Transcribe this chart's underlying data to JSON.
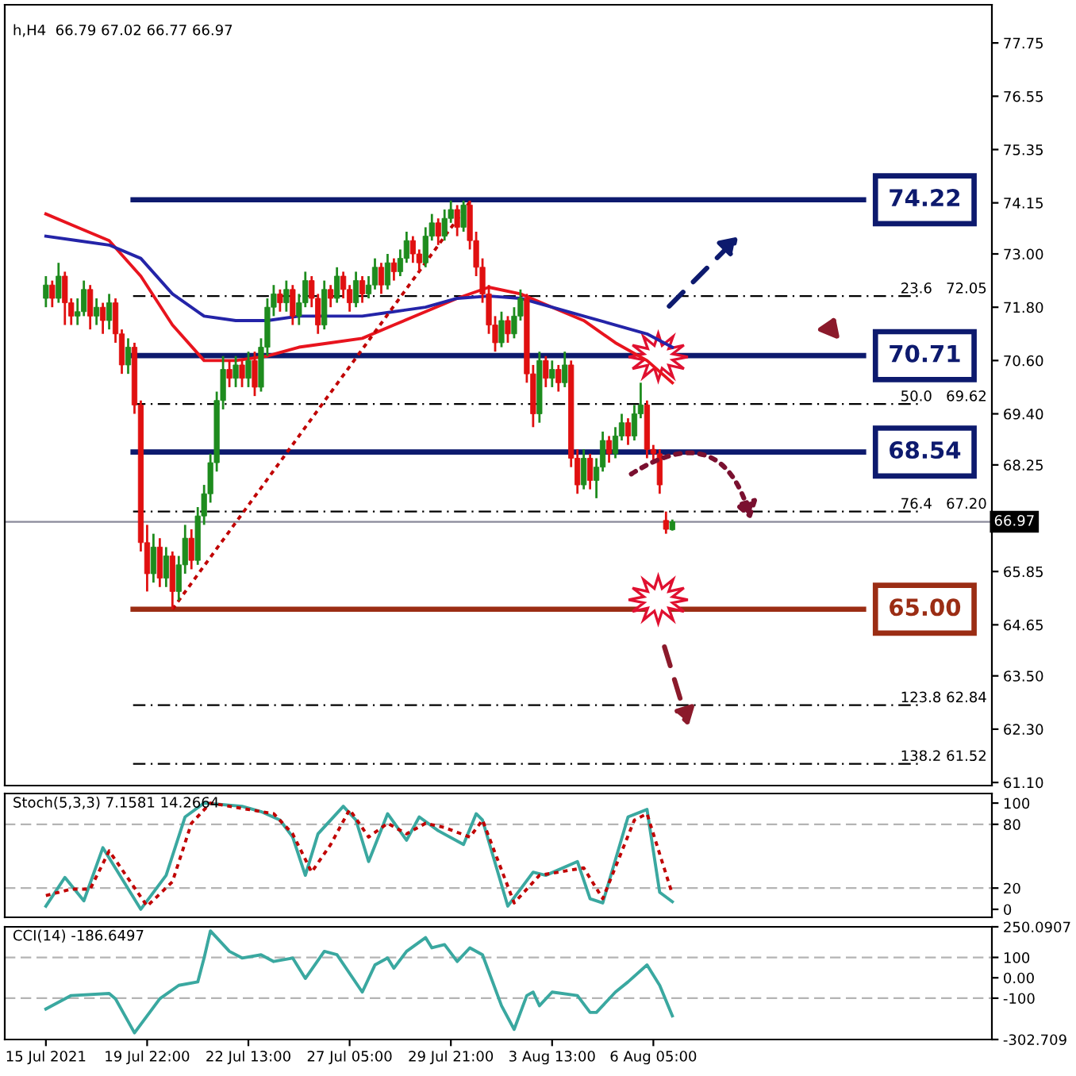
{
  "chart_data": [
    {
      "type": "candlestick",
      "title": "h,H4  66.79 67.02 66.77 66.97",
      "tick_labels": "y",
      "categories": [
        null,
        null,
        null,
        null,
        null,
        null,
        null,
        null,
        null,
        null,
        null,
        null,
        null,
        null,
        null,
        null,
        null,
        null,
        null,
        null,
        null,
        null,
        null,
        null,
        null,
        null,
        null,
        null,
        null,
        null,
        null,
        null,
        null,
        null,
        null,
        null,
        null,
        null,
        null,
        null,
        null,
        null,
        null,
        null,
        null,
        null,
        null,
        null,
        null,
        null,
        null,
        null,
        null,
        null,
        null,
        null,
        null,
        null,
        null,
        null,
        null,
        null,
        null,
        null,
        null,
        null,
        null,
        null,
        null,
        null,
        null,
        null,
        null,
        null,
        null,
        null,
        null,
        null,
        null,
        null,
        null,
        null,
        null,
        null,
        null,
        null,
        null,
        null,
        null,
        null,
        null,
        null,
        null,
        null,
        null,
        null,
        null,
        null,
        null,
        null,
        null,
        null,
        null,
        null,
        null,
        null,
        null,
        null,
        null,
        null,
        null,
        null,
        null,
        null,
        null,
        null,
        null,
        null,
        null,
        null,
        null,
        null,
        null,
        null,
        null,
        null,
        null,
        null,
        null,
        null,
        null,
        null,
        null,
        null,
        null,
        null,
        null,
        null,
        null,
        null,
        null,
        null,
        null,
        null,
        null,
        null,
        null,
        null,
        null,
        null,
        null,
        null,
        null,
        null,
        null,
        null
      ],
      "colors": [
        null,
        null,
        null,
        null,
        null,
        null,
        "#1e8c1e",
        "#e01010",
        "#1e8c1e",
        "#e01010",
        "#e01010",
        "#1e8c1e",
        "#1e8c1e",
        "#e01010",
        "#1e8c1e",
        "#e01010",
        "#1e8c1e",
        "#e01010",
        "#e01010",
        "#1e8c1e",
        "#e01010",
        "#e01010",
        "#e01010",
        "#1e8c1e",
        "#e01010",
        "#1e8c1e",
        "#e01010",
        "#1e8c1e",
        "#1e8c1e",
        "#e01010",
        "#1e8c1e",
        "#1e8c1e",
        "#1e8c1e",
        "#1e8c1e",
        "#1e8c1e",
        "#e01010",
        "#1e8c1e",
        "#e01010",
        "#1e8c1e",
        "#e01010",
        "#1e8c1e",
        "#1e8c1e",
        "#1e8c1e",
        "#e01010",
        "#1e8c1e",
        "#e01010",
        "#1e8c1e",
        "#1e8c1e",
        "#e01010",
        "#e01010",
        "#1e8c1e",
        "#e01010",
        "#1e8c1e",
        "#e01010",
        "#e01010",
        "#1e8c1e",
        "#e01010",
        "#1e8c1e",
        "#1e8c1e",
        "#e01010",
        "#1e8c1e",
        "#e01010",
        "#1e8c1e",
        "#1e8c1e",
        "#e01010",
        "#e01010",
        "#1e8c1e",
        "#1e8c1e",
        "#e01010",
        "#1e8c1e",
        "#1e8c1e",
        "#e01010",
        "#1e8c1e",
        "#e01010",
        "#e01010",
        "#e01010",
        "#e01010",
        "#e01010",
        "#1e8c1e",
        "#e01010",
        "#1e8c1e",
        "#1e8c1e",
        "#e01010",
        "#e01010",
        "#1e8c1e",
        "#e01010",
        "#1e8c1e",
        "#e01010",
        "#1e8c1e",
        "#e01010",
        "#e01010",
        "#1e8c1e",
        "#e01010",
        "#1e8c1e",
        "#1e8c1e",
        "#e01010",
        "#1e8c1e",
        "#1e8c1e",
        "#e01010",
        "#1e8c1e",
        "#1e8c1e",
        "#e01010",
        "#e01010",
        "#e01010",
        "#e01010",
        "#1e8c1e",
        null,
        null,
        null,
        null,
        null,
        null,
        null,
        null,
        null,
        null,
        null,
        null,
        null,
        null,
        null,
        null,
        null,
        null,
        null,
        null,
        null,
        null,
        null,
        null,
        null,
        null,
        null,
        null,
        null,
        null,
        null,
        null,
        null,
        null,
        null,
        null,
        null,
        null,
        null,
        null,
        null,
        null,
        null,
        null,
        null,
        null,
        null,
        null,
        null,
        null
      ],
      "ohlc": [
        null,
        null,
        null,
        null,
        null,
        null,
        [
          72.0,
          72.5,
          71.8,
          72.3
        ],
        [
          72.3,
          72.4,
          71.8,
          72.0
        ],
        [
          72.0,
          72.8,
          71.9,
          72.5
        ],
        [
          72.5,
          72.6,
          71.4,
          71.9
        ],
        [
          71.9,
          72.0,
          71.4,
          71.6
        ],
        [
          71.6,
          72.0,
          71.4,
          71.7
        ],
        [
          71.7,
          72.4,
          71.6,
          72.2
        ],
        [
          72.2,
          72.3,
          71.3,
          71.6
        ],
        [
          71.6,
          72.0,
          71.4,
          71.8
        ],
        [
          71.8,
          71.9,
          71.2,
          71.5
        ],
        [
          71.5,
          72.1,
          71.3,
          71.9
        ],
        [
          71.9,
          72.0,
          71.0,
          71.2
        ],
        [
          71.2,
          71.3,
          70.3,
          70.5
        ],
        [
          70.5,
          71.1,
          70.3,
          70.9
        ],
        [
          70.9,
          71.0,
          69.4,
          69.6
        ],
        [
          69.6,
          69.7,
          66.3,
          66.5
        ],
        [
          66.5,
          66.9,
          65.4,
          65.8
        ],
        [
          65.8,
          66.7,
          65.6,
          66.4
        ],
        [
          66.4,
          66.6,
          65.5,
          65.7
        ],
        [
          65.7,
          66.4,
          65.5,
          66.2
        ],
        [
          66.2,
          66.3,
          65.0,
          65.4
        ],
        [
          65.4,
          66.2,
          65.2,
          66.0
        ],
        [
          66.0,
          66.9,
          65.8,
          66.6
        ],
        [
          66.6,
          66.8,
          65.9,
          66.1
        ],
        [
          66.1,
          67.3,
          66.0,
          67.1
        ],
        [
          67.1,
          67.8,
          66.9,
          67.6
        ],
        [
          67.6,
          68.5,
          67.4,
          68.3
        ],
        [
          68.3,
          69.9,
          68.1,
          69.7
        ],
        [
          69.7,
          70.7,
          69.5,
          70.4
        ],
        [
          70.4,
          70.6,
          70.0,
          70.2
        ],
        [
          70.2,
          70.7,
          70.0,
          70.5
        ],
        [
          70.5,
          70.6,
          70.0,
          70.2
        ],
        [
          70.2,
          70.8,
          70.0,
          70.6
        ],
        [
          70.6,
          70.8,
          69.8,
          70.0
        ],
        [
          70.0,
          71.1,
          69.9,
          70.9
        ],
        [
          70.9,
          72.0,
          70.7,
          71.8
        ],
        [
          71.8,
          72.3,
          71.6,
          72.1
        ],
        [
          72.1,
          72.2,
          71.7,
          71.9
        ],
        [
          71.9,
          72.4,
          71.7,
          72.2
        ],
        [
          72.2,
          72.3,
          71.4,
          71.6
        ],
        [
          71.6,
          72.1,
          71.4,
          71.9
        ],
        [
          71.9,
          72.6,
          71.8,
          72.4
        ],
        [
          72.4,
          72.5,
          71.8,
          72.0
        ],
        [
          72.0,
          72.1,
          71.2,
          71.4
        ],
        [
          71.4,
          72.4,
          71.3,
          72.2
        ],
        [
          72.2,
          72.3,
          71.8,
          72.0
        ],
        [
          72.0,
          72.7,
          71.9,
          72.5
        ],
        [
          72.5,
          72.6,
          72.0,
          72.2
        ],
        [
          72.2,
          72.3,
          71.7,
          71.9
        ],
        [
          71.9,
          72.6,
          71.8,
          72.4
        ],
        [
          72.4,
          72.5,
          71.9,
          72.1
        ],
        [
          72.1,
          72.5,
          72.0,
          72.3
        ],
        [
          72.3,
          72.9,
          72.2,
          72.7
        ],
        [
          72.7,
          72.8,
          72.1,
          72.3
        ],
        [
          72.3,
          73.0,
          72.2,
          72.8
        ],
        [
          72.8,
          72.9,
          72.4,
          72.6
        ],
        [
          72.6,
          73.1,
          72.5,
          72.9
        ],
        [
          72.9,
          73.5,
          72.8,
          73.3
        ],
        [
          73.3,
          73.4,
          72.8,
          73.0
        ],
        [
          73.0,
          73.1,
          72.6,
          72.8
        ],
        [
          72.8,
          73.6,
          72.7,
          73.4
        ],
        [
          73.4,
          73.9,
          73.3,
          73.7
        ],
        [
          73.7,
          73.8,
          73.2,
          73.4
        ],
        [
          73.4,
          74.0,
          73.3,
          73.8
        ],
        [
          73.8,
          74.2,
          73.7,
          74.0
        ],
        [
          74.0,
          74.1,
          73.4,
          73.6
        ],
        [
          73.6,
          74.2,
          73.5,
          74.1
        ],
        [
          74.1,
          74.2,
          73.1,
          73.3
        ],
        [
          73.3,
          73.5,
          72.5,
          72.7
        ],
        [
          72.7,
          72.9,
          71.9,
          72.1
        ],
        [
          72.1,
          72.3,
          71.2,
          71.4
        ],
        [
          71.4,
          71.6,
          70.8,
          71.0
        ],
        [
          71.0,
          71.7,
          70.9,
          71.5
        ],
        [
          71.5,
          71.6,
          71.0,
          71.2
        ],
        [
          71.2,
          71.8,
          71.1,
          71.6
        ],
        [
          71.6,
          72.2,
          71.5,
          72.0
        ],
        [
          72.0,
          72.1,
          70.1,
          70.3
        ],
        [
          70.3,
          70.5,
          69.1,
          69.4
        ],
        [
          69.4,
          70.8,
          69.2,
          70.6
        ],
        [
          70.6,
          70.7,
          70.0,
          70.2
        ],
        [
          70.2,
          70.6,
          70.0,
          70.4
        ],
        [
          70.4,
          70.5,
          69.9,
          70.1
        ],
        [
          70.1,
          70.8,
          70.0,
          70.5
        ],
        [
          70.5,
          70.6,
          68.2,
          68.4
        ],
        [
          68.4,
          68.6,
          67.6,
          67.8
        ],
        [
          67.8,
          68.6,
          67.7,
          68.4
        ],
        [
          68.4,
          68.5,
          67.7,
          67.9
        ],
        [
          67.9,
          68.4,
          67.5,
          68.2
        ],
        [
          68.2,
          69.0,
          68.1,
          68.8
        ],
        [
          68.8,
          68.9,
          68.3,
          68.5
        ],
        [
          68.5,
          69.1,
          68.4,
          68.9
        ],
        [
          68.9,
          69.4,
          68.8,
          69.2
        ],
        [
          69.2,
          69.3,
          68.7,
          68.9
        ],
        [
          68.9,
          69.6,
          68.8,
          69.4
        ],
        [
          69.4,
          70.1,
          69.3,
          69.6
        ],
        [
          69.6,
          69.7,
          68.4,
          68.6
        ],
        [
          68.6,
          68.7,
          68.3,
          68.5
        ],
        [
          68.5,
          68.6,
          67.6,
          67.8
        ],
        [
          67.0,
          67.2,
          66.7,
          66.8
        ],
        [
          66.79,
          67.02,
          66.77,
          66.97
        ],
        null,
        null,
        null,
        null,
        null,
        null,
        null,
        null,
        null,
        null,
        null,
        null,
        null,
        null,
        null,
        null,
        null,
        null,
        null,
        null,
        null,
        null,
        null,
        null,
        null,
        null,
        null,
        null,
        null,
        null,
        null,
        null,
        null,
        null,
        null,
        null,
        null,
        null,
        null,
        null,
        null,
        null,
        null,
        null,
        null,
        null,
        null,
        null,
        null,
        null
      ],
      "series": [
        {
          "type": "line",
          "color": "#e8141e",
          "line_style": "solid",
          "values": [
            null,
            null,
            null,
            null,
            null,
            null,
            73.9,
            null,
            null,
            null,
            null,
            73.6,
            null,
            null,
            null,
            null,
            73.3,
            null,
            null,
            null,
            null,
            72.5,
            null,
            null,
            null,
            null,
            71.4,
            null,
            null,
            null,
            null,
            70.6,
            null,
            null,
            null,
            null,
            70.6,
            null,
            null,
            null,
            null,
            70.7,
            null,
            null,
            null,
            null,
            70.9,
            null,
            null,
            null,
            null,
            71.0,
            null,
            null,
            null,
            null,
            71.1,
            null,
            null,
            null,
            null,
            71.4,
            null,
            null,
            null,
            null,
            71.7,
            null,
            null,
            null,
            null,
            72.0,
            null,
            null,
            null,
            null,
            72.25,
            null,
            null,
            null,
            null,
            72.1,
            null,
            null,
            null,
            null,
            71.8,
            null,
            null,
            null,
            null,
            71.5,
            null,
            null,
            null,
            null,
            71.0,
            null,
            null,
            null,
            null,
            70.6,
            null,
            null,
            null,
            70.1,
            null,
            null,
            null,
            null,
            null,
            null,
            null,
            null,
            null,
            null,
            null,
            null,
            null,
            null,
            null,
            null,
            null,
            null,
            null,
            null,
            null,
            null,
            null,
            null,
            null,
            null,
            null,
            null,
            null,
            null,
            null,
            null,
            null,
            null,
            null,
            null,
            null,
            null,
            null,
            null,
            null,
            null,
            null,
            null,
            null,
            null,
            null,
            null,
            null,
            null
          ]
        },
        {
          "type": "line",
          "color": "#2424a8",
          "line_style": "solid",
          "values": [
            null,
            null,
            null,
            null,
            null,
            null,
            73.4,
            null,
            null,
            null,
            null,
            73.3,
            null,
            null,
            null,
            null,
            73.2,
            null,
            null,
            null,
            null,
            72.9,
            null,
            null,
            null,
            null,
            72.1,
            null,
            null,
            null,
            null,
            71.6,
            null,
            null,
            null,
            null,
            71.5,
            null,
            null,
            null,
            null,
            71.5,
            null,
            null,
            null,
            null,
            71.6,
            null,
            null,
            null,
            null,
            71.6,
            null,
            null,
            null,
            null,
            71.6,
            null,
            null,
            null,
            null,
            71.7,
            null,
            null,
            null,
            null,
            71.8,
            null,
            null,
            null,
            null,
            72.0,
            null,
            null,
            null,
            null,
            72.05,
            null,
            null,
            null,
            null,
            72.0,
            null,
            null,
            null,
            null,
            71.8,
            null,
            null,
            null,
            null,
            71.6,
            null,
            null,
            null,
            null,
            71.4,
            null,
            null,
            null,
            null,
            71.2,
            null,
            null,
            null,
            70.9,
            null,
            null,
            null,
            null,
            null,
            null,
            null,
            null,
            null,
            null,
            null,
            null,
            null,
            null,
            null,
            null,
            null,
            null,
            null,
            null,
            null,
            null,
            null,
            null,
            null,
            null,
            null,
            null,
            null,
            null,
            null,
            null,
            null,
            null,
            null,
            null,
            null,
            null,
            null,
            null,
            null,
            null,
            null,
            null,
            null,
            null,
            null,
            null,
            null,
            null
          ]
        },
        {
          "type": "line",
          "color": "#c00000",
          "line_style": "dotted",
          "values": [
            null,
            null,
            null,
            null,
            null,
            null,
            null,
            null,
            null,
            null,
            null,
            null,
            null,
            null,
            null,
            null,
            null,
            null,
            null,
            null,
            null,
            null,
            null,
            null,
            null,
            null,
            65.0,
            null,
            null,
            null,
            null,
            null,
            null,
            null,
            null,
            null,
            null,
            null,
            null,
            null,
            null,
            null,
            null,
            null,
            null,
            null,
            null,
            null,
            null,
            null,
            null,
            null,
            null,
            null,
            null,
            null,
            null,
            null,
            null,
            null,
            null,
            null,
            null,
            null,
            null,
            null,
            null,
            null,
            null,
            null,
            null,
            null,
            null,
            74.17,
            null,
            null,
            null,
            null,
            null,
            null,
            null,
            null,
            null,
            null,
            null,
            null,
            null,
            null,
            null,
            null,
            null,
            null,
            null,
            null,
            null,
            null,
            null,
            null,
            null,
            null,
            null,
            null,
            null,
            null,
            null,
            null,
            null,
            null,
            null,
            null,
            null,
            null,
            null,
            null,
            null,
            null,
            null,
            null,
            null,
            null,
            null,
            null,
            null,
            null,
            null,
            null,
            null,
            null,
            null,
            null,
            null,
            null,
            null,
            null,
            null,
            null,
            null,
            null,
            null,
            null,
            null,
            null,
            null,
            null,
            null,
            null,
            null,
            null,
            null,
            null,
            null,
            null,
            null,
            null,
            null,
            null
          ]
        }
      ],
      "ylim": [
        61.03,
        78.61
      ],
      "yticks": [
        77.75,
        76.55,
        75.35,
        74.15,
        {
          "value": 73.0,
          "label": "73.00"
        },
        {
          "value": 71.8,
          "label": "71.80"
        },
        {
          "value": 70.6,
          "label": "70.60"
        },
        {
          "value": 69.4,
          "label": "69.40"
        },
        68.25,
        65.85,
        64.65,
        {
          "value": 63.5,
          "label": "63.50"
        },
        {
          "value": 62.3,
          "label": "62.30"
        },
        {
          "value": 61.1,
          "label": "61.10"
        }
      ],
      "ref_lines": [
        {
          "axis": "y",
          "value": 74.22,
          "label": "74.22",
          "color": "#0d1a6e",
          "line_style": "solid"
        },
        {
          "axis": "y",
          "value": 70.71,
          "label": "70.71",
          "color": "#0d1a6e",
          "line_style": "solid"
        },
        {
          "axis": "y",
          "value": 68.54,
          "label": "68.54",
          "color": "#0d1a6e",
          "line_style": "solid"
        },
        {
          "axis": "y",
          "value": 65.0,
          "label": "65.00",
          "color": "#9b2d14",
          "line_style": "solid"
        },
        {
          "axis": "y",
          "value": 72.05,
          "label": "23.6   72.05",
          "color": "#000000",
          "line_style": "dashed"
        },
        {
          "axis": "y",
          "value": 69.62,
          "label": "50.0   69.62",
          "color": "#000000",
          "line_style": "dashed"
        },
        {
          "axis": "y",
          "value": 67.2,
          "label": "76.4   67.20",
          "color": "#000000",
          "line_style": "dashed"
        },
        {
          "axis": "y",
          "value": 62.84,
          "label": "123.8 62.84",
          "color": "#000000",
          "line_style": "dashed"
        },
        {
          "axis": "y",
          "value": 61.52,
          "label": "138.2 61.52",
          "color": "#000000",
          "line_style": "dashed"
        },
        {
          "axis": "y",
          "value": 66.97,
          "color": "#8a8a9a",
          "line_style": "solid"
        }
      ],
      "annotations": [
        {
          "text": "66.97",
          "y": 66.97
        }
      ]
    },
    {
      "type": "line",
      "title": "Stoch(5,3,3) 7.1581 14.2664",
      "tick_labels": "y",
      "categories": [
        null,
        null,
        null,
        null,
        null,
        null,
        null,
        null,
        null,
        null,
        null,
        null,
        null,
        null,
        null,
        null,
        null,
        null,
        null,
        null,
        null,
        null,
        null,
        null,
        null,
        null,
        null,
        null,
        null,
        null,
        null,
        null,
        null,
        null,
        null,
        null,
        null,
        null,
        null,
        null,
        null,
        null,
        null,
        null,
        null,
        null,
        null,
        null,
        null,
        null,
        null,
        null,
        null,
        null,
        null,
        null,
        null,
        null,
        null,
        null,
        null,
        null,
        null,
        null,
        null,
        null,
        null,
        null,
        null,
        null,
        null,
        null,
        null,
        null,
        null,
        null,
        null,
        null,
        null,
        null,
        null,
        null,
        null,
        null,
        null,
        null,
        null,
        null,
        null,
        null,
        null,
        null,
        null,
        null,
        null,
        null,
        null,
        null,
        null,
        null,
        null,
        null,
        null,
        null,
        null,
        null,
        null,
        null,
        null,
        null,
        null,
        null,
        null,
        null,
        null,
        null,
        null,
        null,
        null,
        null,
        null,
        null,
        null,
        null,
        null,
        null,
        null,
        null,
        null,
        null,
        null,
        null,
        null,
        null,
        null,
        null,
        null,
        null,
        null,
        null,
        null,
        null,
        null,
        null,
        null,
        null,
        null,
        null,
        null,
        null,
        null,
        null,
        null,
        null,
        null,
        null
      ],
      "series": [
        {
          "color": "#3aa8a0",
          "line_style": "solid",
          "values": [
            null,
            null,
            null,
            null,
            null,
            null,
            3,
            null,
            null,
            30,
            null,
            null,
            8,
            null,
            null,
            58,
            null,
            null,
            null,
            null,
            null,
            0,
            null,
            null,
            null,
            32,
            null,
            null,
            87,
            null,
            null,
            100,
            null,
            null,
            null,
            null,
            null,
            97,
            null,
            null,
            92,
            null,
            null,
            84,
            null,
            68,
            null,
            32,
            null,
            71,
            null,
            null,
            null,
            97,
            null,
            84,
            null,
            45,
            null,
            null,
            90,
            null,
            null,
            65,
            null,
            87,
            null,
            null,
            74,
            null,
            null,
            null,
            61,
            null,
            90,
            84,
            null,
            null,
            null,
            3,
            null,
            null,
            null,
            35,
            null,
            32,
            null,
            null,
            null,
            null,
            45,
            null,
            10,
            null,
            6,
            null,
            null,
            null,
            87,
            null,
            null,
            94,
            null,
            16,
            null,
            7.1581,
            null,
            null,
            null,
            null,
            null,
            null,
            null,
            null,
            null,
            null,
            null,
            null,
            null,
            null,
            null,
            null,
            null,
            null,
            null,
            null,
            null,
            null,
            null,
            null,
            null,
            null,
            null,
            null,
            null,
            null,
            null,
            null,
            null,
            null,
            null,
            null,
            null,
            null,
            null,
            null,
            null,
            null,
            null,
            null,
            null,
            null,
            null,
            null,
            null,
            null
          ]
        },
        {
          "color": "#c00000",
          "line_style": "dotted",
          "values": [
            null,
            null,
            null,
            null,
            null,
            null,
            13,
            null,
            null,
            null,
            19,
            null,
            null,
            19,
            null,
            null,
            55,
            null,
            null,
            null,
            null,
            null,
            3,
            null,
            null,
            null,
            26,
            null,
            null,
            81,
            null,
            null,
            100,
            null,
            null,
            null,
            null,
            null,
            94,
            null,
            null,
            null,
            90,
            null,
            null,
            71,
            null,
            null,
            35,
            null,
            null,
            61,
            null,
            null,
            94,
            null,
            null,
            68,
            null,
            null,
            81,
            null,
            null,
            71,
            null,
            null,
            81,
            null,
            null,
            77,
            null,
            null,
            null,
            68,
            null,
            84,
            null,
            null,
            null,
            null,
            6,
            null,
            null,
            null,
            32,
            null,
            null,
            35,
            null,
            null,
            null,
            39,
            null,
            null,
            10,
            null,
            null,
            null,
            null,
            84,
            null,
            90,
            null,
            null,
            null,
            14.2664,
            null,
            null,
            null,
            null,
            null,
            null,
            null,
            null,
            null,
            null,
            null,
            null,
            null,
            null,
            null,
            null,
            null,
            null,
            null,
            null,
            null,
            null,
            null,
            null,
            null,
            null,
            null,
            null,
            null,
            null,
            null,
            null,
            null,
            null,
            null,
            null,
            null,
            null,
            null,
            null,
            null,
            null,
            null,
            null,
            null,
            null,
            null,
            null,
            null,
            null
          ]
        }
      ],
      "ylim": [
        -7.5,
        109
      ],
      "yticks": [
        100,
        80,
        20,
        0
      ],
      "ref_lines": [
        {
          "axis": "y",
          "value": 80,
          "color": "#b4b4b4",
          "line_style": "dashed"
        },
        {
          "axis": "y",
          "value": 20,
          "color": "#b4b4b4",
          "line_style": "dashed"
        }
      ]
    },
    {
      "type": "line",
      "title": "CCI(14) -186.6497",
      "categories": [
        null,
        null,
        null,
        null,
        null,
        null,
        "15 Jul 2021",
        null,
        null,
        null,
        null,
        null,
        null,
        null,
        null,
        null,
        null,
        null,
        null,
        null,
        null,
        null,
        "19 Jul 22:00",
        null,
        null,
        null,
        null,
        null,
        null,
        null,
        null,
        null,
        null,
        null,
        null,
        null,
        null,
        null,
        "22 Jul 13:00",
        null,
        null,
        null,
        null,
        null,
        null,
        null,
        null,
        null,
        null,
        null,
        null,
        null,
        null,
        null,
        "27 Jul 05:00",
        null,
        null,
        null,
        null,
        null,
        null,
        null,
        null,
        null,
        null,
        null,
        null,
        null,
        null,
        null,
        "29 Jul 21:00",
        null,
        null,
        null,
        null,
        null,
        null,
        null,
        null,
        null,
        null,
        null,
        null,
        null,
        null,
        null,
        "3 Aug 13:00",
        null,
        null,
        null,
        null,
        null,
        null,
        null,
        null,
        null,
        null,
        null,
        null,
        null,
        null,
        null,
        "6 Aug 05:00",
        null,
        null,
        null,
        null,
        null,
        null,
        null,
        null,
        null,
        null,
        null,
        null,
        null,
        null,
        null,
        null,
        null,
        null,
        null,
        null,
        null,
        null,
        null,
        null,
        null,
        null,
        null,
        null,
        null,
        null,
        null,
        null,
        null,
        null,
        null,
        null,
        null,
        null,
        null,
        null,
        null,
        null,
        null,
        null,
        null,
        null,
        null,
        null,
        null,
        null,
        null,
        null,
        null
      ],
      "series": [
        {
          "color": "#3aa8a0",
          "line_style": "solid",
          "values": [
            null,
            null,
            null,
            null,
            null,
            null,
            -153,
            null,
            null,
            null,
            -87,
            null,
            null,
            null,
            null,
            null,
            -77,
            -103,
            null,
            null,
            -270,
            null,
            null,
            null,
            -103,
            null,
            null,
            -37,
            null,
            null,
            -20,
            97,
            230,
            null,
            null,
            130,
            null,
            97,
            null,
            null,
            113,
            null,
            80,
            null,
            null,
            97,
            null,
            -3,
            null,
            null,
            130,
            null,
            113,
            null,
            null,
            null,
            -70,
            null,
            63,
            null,
            97,
            47,
            null,
            130,
            null,
            null,
            197,
            147,
            null,
            163,
            null,
            80,
            null,
            147,
            null,
            113,
            null,
            null,
            -137,
            null,
            -253,
            null,
            -87,
            -70,
            -137,
            null,
            -70,
            null,
            null,
            null,
            -87,
            null,
            -170,
            -170,
            null,
            null,
            -70,
            null,
            -20,
            null,
            null,
            63,
            null,
            -37,
            null,
            -186.6497,
            null,
            null,
            null,
            null,
            null,
            null,
            null,
            null,
            null,
            null,
            null,
            null,
            null,
            null,
            null,
            null,
            null,
            null,
            null,
            null,
            null,
            null,
            null,
            null,
            null,
            null,
            null,
            null,
            null,
            null,
            null,
            null,
            null,
            null,
            null,
            null,
            null,
            null,
            null,
            null,
            null,
            null,
            null,
            null,
            null,
            null,
            null,
            null,
            null,
            null
          ]
        }
      ],
      "ylim": [
        -302.709,
        250.0907
      ],
      "yticks": [
        250.0907,
        100,
        {
          "value": 0,
          "label": "0.00"
        },
        -100,
        -302.709
      ],
      "ref_lines": [
        {
          "axis": "y",
          "value": 100,
          "color": "#b4b4b4",
          "line_style": "dashed"
        },
        {
          "axis": "y",
          "value": -100,
          "color": "#b4b4b4",
          "line_style": "dashed"
        }
      ]
    }
  ]
}
